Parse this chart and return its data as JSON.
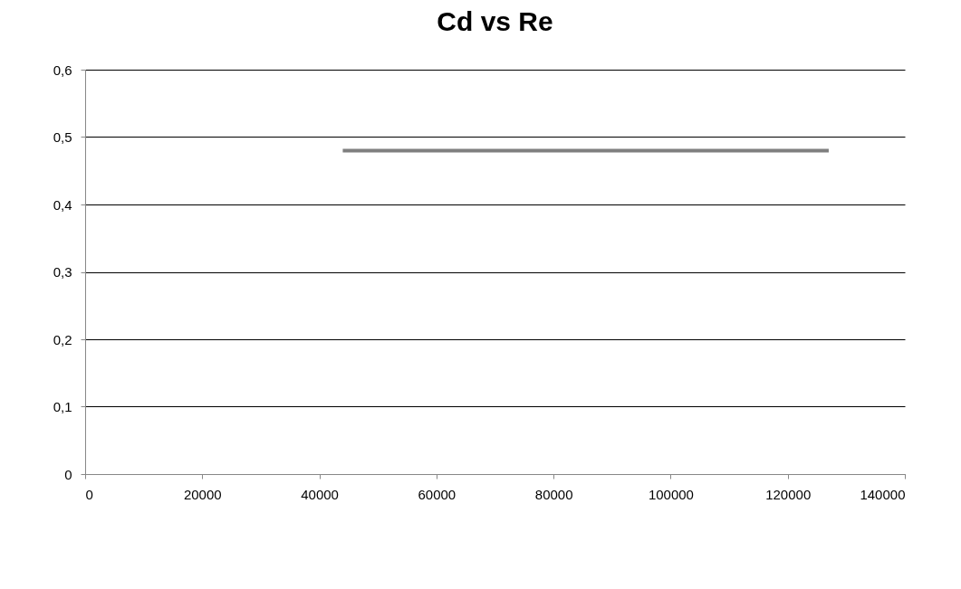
{
  "chart_data": {
    "type": "line",
    "title": "Cd vs Re",
    "x": [
      44000,
      127000
    ],
    "series": [
      {
        "color": "#7f7f7f",
        "values": [
          0.48,
          0.48
        ]
      }
    ],
    "xlim": [
      0,
      140000
    ],
    "xticks": [
      0,
      20000,
      40000,
      60000,
      80000,
      100000,
      120000,
      140000
    ],
    "ylim": [
      0,
      0.6
    ],
    "yticks": [
      0,
      {
        "value": 0.1,
        "label": "0,1"
      },
      {
        "value": 0.2,
        "label": "0,2"
      },
      {
        "value": 0.3,
        "label": "0,3"
      },
      {
        "value": 0.4,
        "label": "0,4"
      },
      {
        "value": 0.5,
        "label": "0,5"
      },
      {
        "value": 0.6,
        "label": "0,6"
      }
    ],
    "grid": "y",
    "marker": "none",
    "line_style": "solid"
  }
}
